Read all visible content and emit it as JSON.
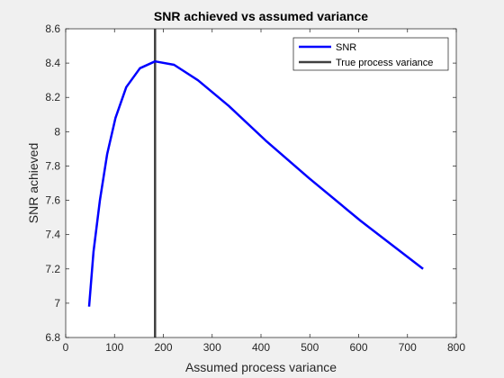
{
  "chart_data": {
    "type": "line",
    "title": "SNR achieved vs assumed variance",
    "xlabel": "Assumed process variance",
    "ylabel": "SNR achieved",
    "xlim": [
      0,
      800
    ],
    "ylim": [
      6.8,
      8.6
    ],
    "xticks": [
      0,
      100,
      200,
      300,
      400,
      500,
      600,
      700,
      800
    ],
    "yticks": [
      6.8,
      7,
      7.2,
      7.4,
      7.6,
      7.8,
      8,
      8.2,
      8.4,
      8.6
    ],
    "grid": false,
    "legend_location": "top-right",
    "series": [
      {
        "name": "SNR",
        "color": "#0000ff",
        "x": [
          48,
          57,
          70,
          85,
          102,
          124,
          152,
          183,
          222,
          271,
          334,
          409,
          498,
          604,
          732
        ],
        "y": [
          6.98,
          7.3,
          7.6,
          7.87,
          8.08,
          8.26,
          8.37,
          8.41,
          8.39,
          8.3,
          8.15,
          7.95,
          7.73,
          7.48,
          7.2
        ]
      }
    ],
    "vlines": [
      {
        "name": "True process variance",
        "x": 183,
        "color": "#404040"
      }
    ]
  }
}
